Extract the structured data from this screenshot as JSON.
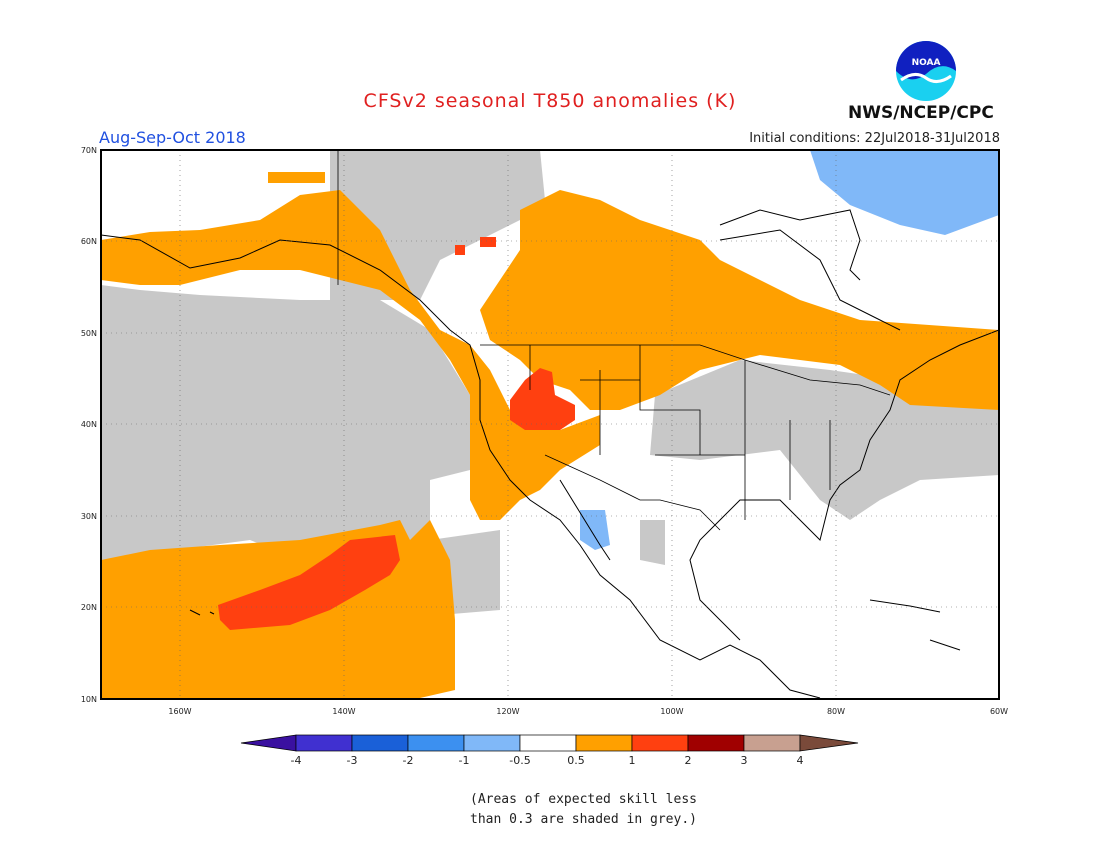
{
  "header": {
    "title": "CFSv2 seasonal T850 anomalies (K)",
    "period": "Aug-Sep-Oct 2018",
    "initial_conditions": "Initial conditions: 22Jul2018-31Jul2018",
    "agency": "NWS/NCEP/CPC",
    "logo_text": "NOAA"
  },
  "map": {
    "lat_labels": [
      "70N",
      "60N",
      "50N",
      "40N",
      "30N",
      "20N",
      "10N"
    ],
    "lon_labels": [
      "160W",
      "140W",
      "120W",
      "100W",
      "80W",
      "60W"
    ],
    "colors": {
      "grey_skill": "#c8c8c8",
      "pos_05_1": "#ffa000",
      "pos_1_2": "#ff4010",
      "neg_05_1": "#80b8f8",
      "coast": "#000000"
    }
  },
  "colorbar": {
    "labels": [
      "-4",
      "-3",
      "-2",
      "-1",
      "-0.5",
      "0.5",
      "1",
      "2",
      "3",
      "4"
    ],
    "colors": [
      "#3a10a0",
      "#4030d0",
      "#1a60d8",
      "#3c90f0",
      "#80b8f8",
      "#ffffff",
      "#ffa000",
      "#ff4010",
      "#a00000",
      "#c8a090",
      "#7a4a3a"
    ]
  },
  "footnote": {
    "line1": "(Areas of expected skill less",
    "line2": "than 0.3 are shaded in grey.)"
  }
}
